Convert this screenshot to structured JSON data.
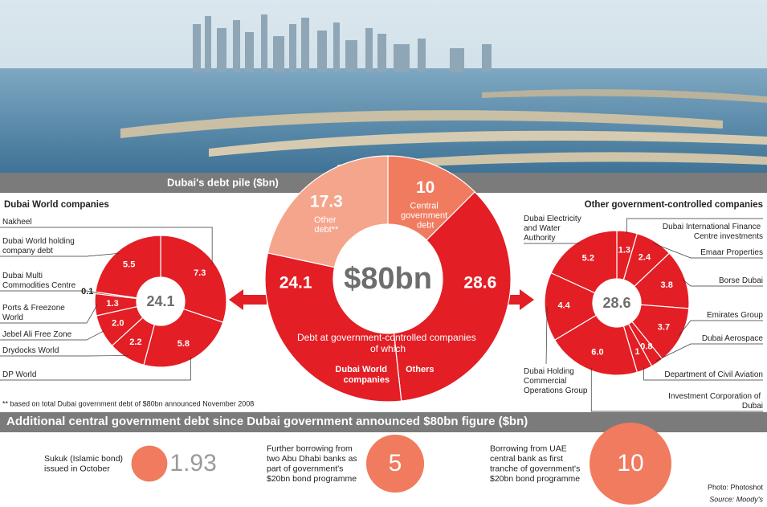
{
  "chart_data": [
    {
      "type": "donut",
      "title": "Dubai's debt pile ($bn)",
      "center_label": "$80bn",
      "group_label": "Debt at government-controlled companies of which",
      "categories": [
        "Central government debt",
        "Others",
        "Dubai World companies",
        "Other debt**"
      ],
      "values": [
        10,
        28.6,
        24.1,
        17.3
      ],
      "colors": [
        "#f07b5f",
        "#e31e25",
        "#e31e25",
        "#f5a58b"
      ]
    },
    {
      "type": "donut",
      "title": "Dubai World companies",
      "center_label": 24.1,
      "categories": [
        "Nakheel",
        "DP World",
        "Drydocks World",
        "Jebel Ali Free Zone",
        "Ports & Freezone World",
        "Dubai Multi Commodities Centre",
        "Dubai World holding company debt"
      ],
      "values": [
        7.3,
        5.8,
        2.2,
        2.0,
        1.3,
        0.1,
        5.5
      ],
      "value_labels": [
        "7.3",
        "5.8",
        "2.2",
        "2.0",
        "1.3",
        "0.1",
        "5.5"
      ],
      "color": "#e31e25"
    },
    {
      "type": "donut",
      "title": "Other government-controlled companies",
      "center_label": 28.6,
      "categories": [
        "Dubai International Finance Centre investments",
        "Emaar Properties",
        "Borse Dubai",
        "Emirates Group",
        "Dubai Aerospace",
        "Department of Civil Aviation",
        "Investment Corporation of Dubai",
        "Dubai Holding Commercial Operations Group",
        "Dubai Electricity and Water Authority"
      ],
      "values": [
        1.3,
        2.4,
        3.8,
        3.7,
        0.8,
        1,
        6.0,
        4.4,
        5.2
      ],
      "value_labels": [
        "1.3",
        "2.4",
        "3.8",
        "3.7",
        "0.8",
        "1",
        "6.0",
        "4.4",
        "5.2"
      ],
      "color": "#e31e25"
    },
    {
      "type": "bubble",
      "title": "Additional central government debt since Dubai government announced $80bn figure ($bn)",
      "categories": [
        "Sukuk (Islamic bond) issued in October",
        "Further borrowing from two Abu Dhabi banks as part of government's $20bn bond programme",
        "Borrowing from UAE central bank as first tranche of government's $20bn bond programme"
      ],
      "values": [
        1.93,
        5,
        10
      ],
      "color": "#f07b5f"
    }
  ],
  "note": "** based on total Dubai government debt of $80bn announced November 2008",
  "photo_credit": "Photo: Photoshot",
  "source": "Source: Moody's"
}
